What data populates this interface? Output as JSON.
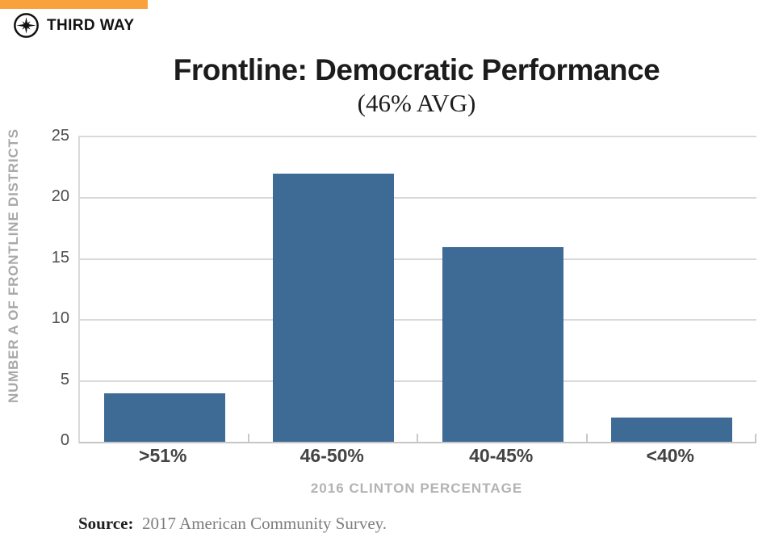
{
  "brand": {
    "name": "THIRD WAY",
    "logo_icon": "compass-star-icon",
    "accent_color": "#F9A13C"
  },
  "header_title": "Frontline: Democratic Performance",
  "header_subtitle": "(46% AVG)",
  "source": {
    "label": "Source:",
    "text": "2017 American Community Survey."
  },
  "chart_data": {
    "type": "bar",
    "title": "Frontline: Democratic Performance",
    "subtitle": "(46% AVG)",
    "categories": [
      ">51%",
      "46-50%",
      "40-45%",
      "<40%"
    ],
    "values": [
      4,
      22,
      16,
      2
    ],
    "xlabel": "2016 CLINTON PERCENTAGE",
    "ylabel": "NUMBER A OF FRONTLINE DISTRICTS",
    "ylim": [
      0,
      25
    ],
    "yticks": [
      0,
      5,
      10,
      15,
      20,
      25
    ],
    "grid": true,
    "legend": "none",
    "bar_color": "#3D6B96",
    "gridline_color": "#D9D9D9",
    "axis_color": "#C6C6C6",
    "tick_label_color": "#4D4D4D",
    "category_label_color": "#434343",
    "axis_title_color": "#ADADAD"
  }
}
